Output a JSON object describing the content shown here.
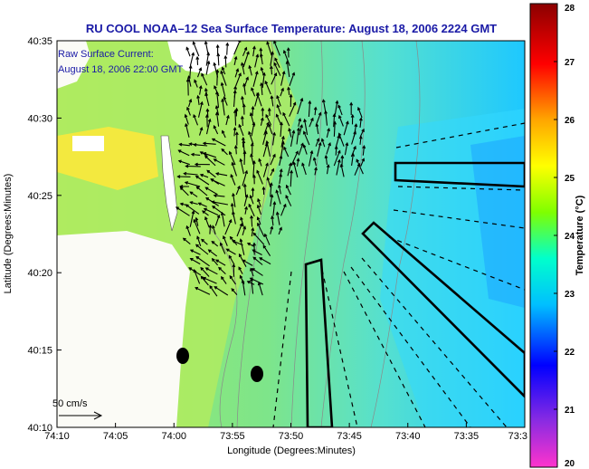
{
  "title": "RU COOL  NOAA–12  Sea Surface Temperature:  August 18, 2006 2224 GMT",
  "legend": {
    "line1": "Raw Surface Current:",
    "line2": "August 18, 2006 22:00 GMT"
  },
  "scale": {
    "label": "50 cm/s"
  },
  "axes": {
    "xlabel": "Longitude (Degrees:Minutes)",
    "ylabel": "Latitude (Degrees:Minutes)",
    "xticks": [
      "74:10",
      "74:05",
      "74:00",
      "73:55",
      "73:50",
      "73:45",
      "73:40",
      "73:35",
      "73:3"
    ],
    "yticks": [
      "40:35",
      "40:30",
      "40:25",
      "40:20",
      "40:15",
      "40:10"
    ]
  },
  "colorbar": {
    "label": "Temperature (°C)",
    "ticks": [
      "28",
      "27",
      "26",
      "25",
      "24",
      "23",
      "22",
      "21",
      "20"
    ],
    "min": 20,
    "max": 28,
    "colors": [
      "#ff33cc",
      "#8a2be2",
      "#0000ff",
      "#00bfff",
      "#00ffcc",
      "#7fff00",
      "#ffff00",
      "#ffa500",
      "#ff0000",
      "#8b0000"
    ]
  }
}
